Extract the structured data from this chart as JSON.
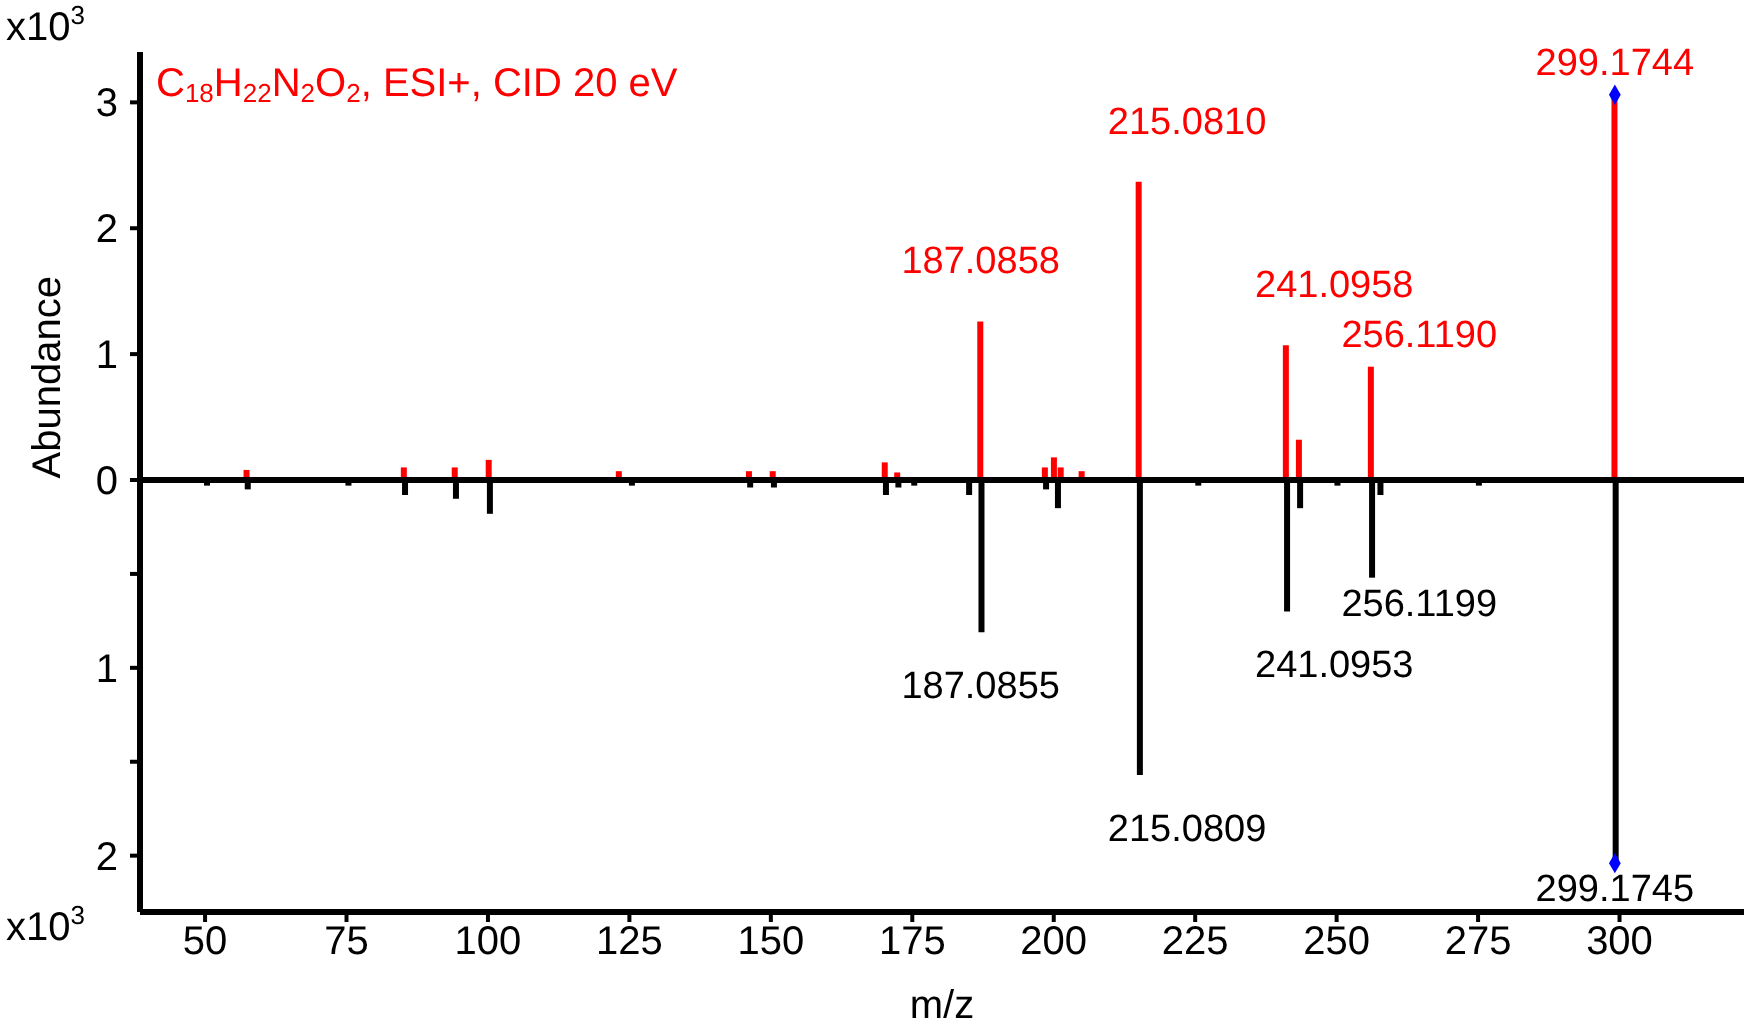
{
  "chart_data": [
    {
      "type": "bar",
      "ylabel": "Abundance",
      "xlim": [
        38.5,
        322
      ],
      "ylim": [
        0,
        3.4
      ],
      "yticks": [
        0,
        1,
        2,
        3
      ],
      "tick_labels": "y",
      "annotations": [
        "x10$^{3}$",
        "C$_{18}$H$_{22}$N$_{2}$O$_{2}$, ESI+, CID 20 eV",
        {
          "text": "187.0858",
          "x": 187.0858,
          "y": 1.26
        },
        {
          "text": "215.0810",
          "x": 215.081,
          "y": 2.37
        },
        {
          "text": "241.0958",
          "x": 241.0958,
          "y": 1.07
        },
        {
          "text": "256.1190",
          "x": 256.119,
          "y": 0.9
        },
        {
          "text": "299.1744",
          "x": 299.1744,
          "y": 3.06
        }
      ],
      "series": [
        {
          "color": "#ff0000",
          "x": [
            57.4,
            85.2,
            94.2,
            100.2,
            123.2,
            146.2,
            150.4,
            170.2,
            172.4,
            187.0858,
            198.5,
            200.1,
            201.3,
            205,
            215.081,
            241.0958,
            243.4,
            256.119,
            299.1744
          ],
          "values": [
            0.08,
            0.1,
            0.1,
            0.16,
            0.07,
            0.07,
            0.07,
            0.14,
            0.06,
            1.26,
            0.1,
            0.18,
            0.1,
            0.07,
            2.37,
            1.07,
            0.32,
            0.9,
            3.06
          ]
        },
        {
          "type": "scatter",
          "marker": "diamond",
          "color": "#0000ff",
          "x": [
            299.1744
          ],
          "values": [
            3.06
          ]
        }
      ]
    },
    {
      "type": "bar",
      "xlabel": "m/z",
      "xlim": [
        38.5,
        322
      ],
      "ylim": [
        2.3,
        0
      ],
      "xticks": [
        50,
        75,
        100,
        125,
        150,
        175,
        200,
        225,
        250,
        275,
        300
      ],
      "yticks": [
        {
          "value": 0.5,
          "label": null
        },
        1,
        {
          "value": 1.5,
          "label": null
        },
        2
      ],
      "annotations": [
        "x10$^{3}$",
        {
          "text": "187.0855",
          "x": 187.0855,
          "y": 0.81
        },
        {
          "text": "215.0809",
          "x": 215.0809,
          "y": 1.57
        },
        {
          "text": "241.0953",
          "x": 241.0953,
          "y": 0.7
        },
        {
          "text": "256.1199",
          "x": 256.1199,
          "y": 0.52
        },
        {
          "text": "299.1745",
          "x": 299.1745,
          "y": 2.04
        }
      ],
      "series": [
        {
          "color": "#000000",
          "x": [
            50.2,
            57.4,
            75.2,
            85.2,
            94.2,
            100.2,
            125.3,
            146.2,
            150.4,
            170.2,
            172.4,
            175.2,
            184.9,
            187.0855,
            198.5,
            200.6,
            215.0809,
            225.4,
            241.0953,
            243.4,
            250,
            256.1199,
            257.6,
            275,
            299.1745
          ],
          "values": [
            0.03,
            0.05,
            0.03,
            0.08,
            0.1,
            0.18,
            0.03,
            0.04,
            0.04,
            0.08,
            0.04,
            0.03,
            0.08,
            0.81,
            0.05,
            0.15,
            1.57,
            0.03,
            0.7,
            0.15,
            0.03,
            0.52,
            0.08,
            0.03,
            2.04
          ]
        },
        {
          "type": "scatter",
          "marker": "diamond",
          "color": "#0000ff",
          "x": [
            299.1745
          ],
          "values": [
            2.04
          ]
        }
      ]
    }
  ]
}
